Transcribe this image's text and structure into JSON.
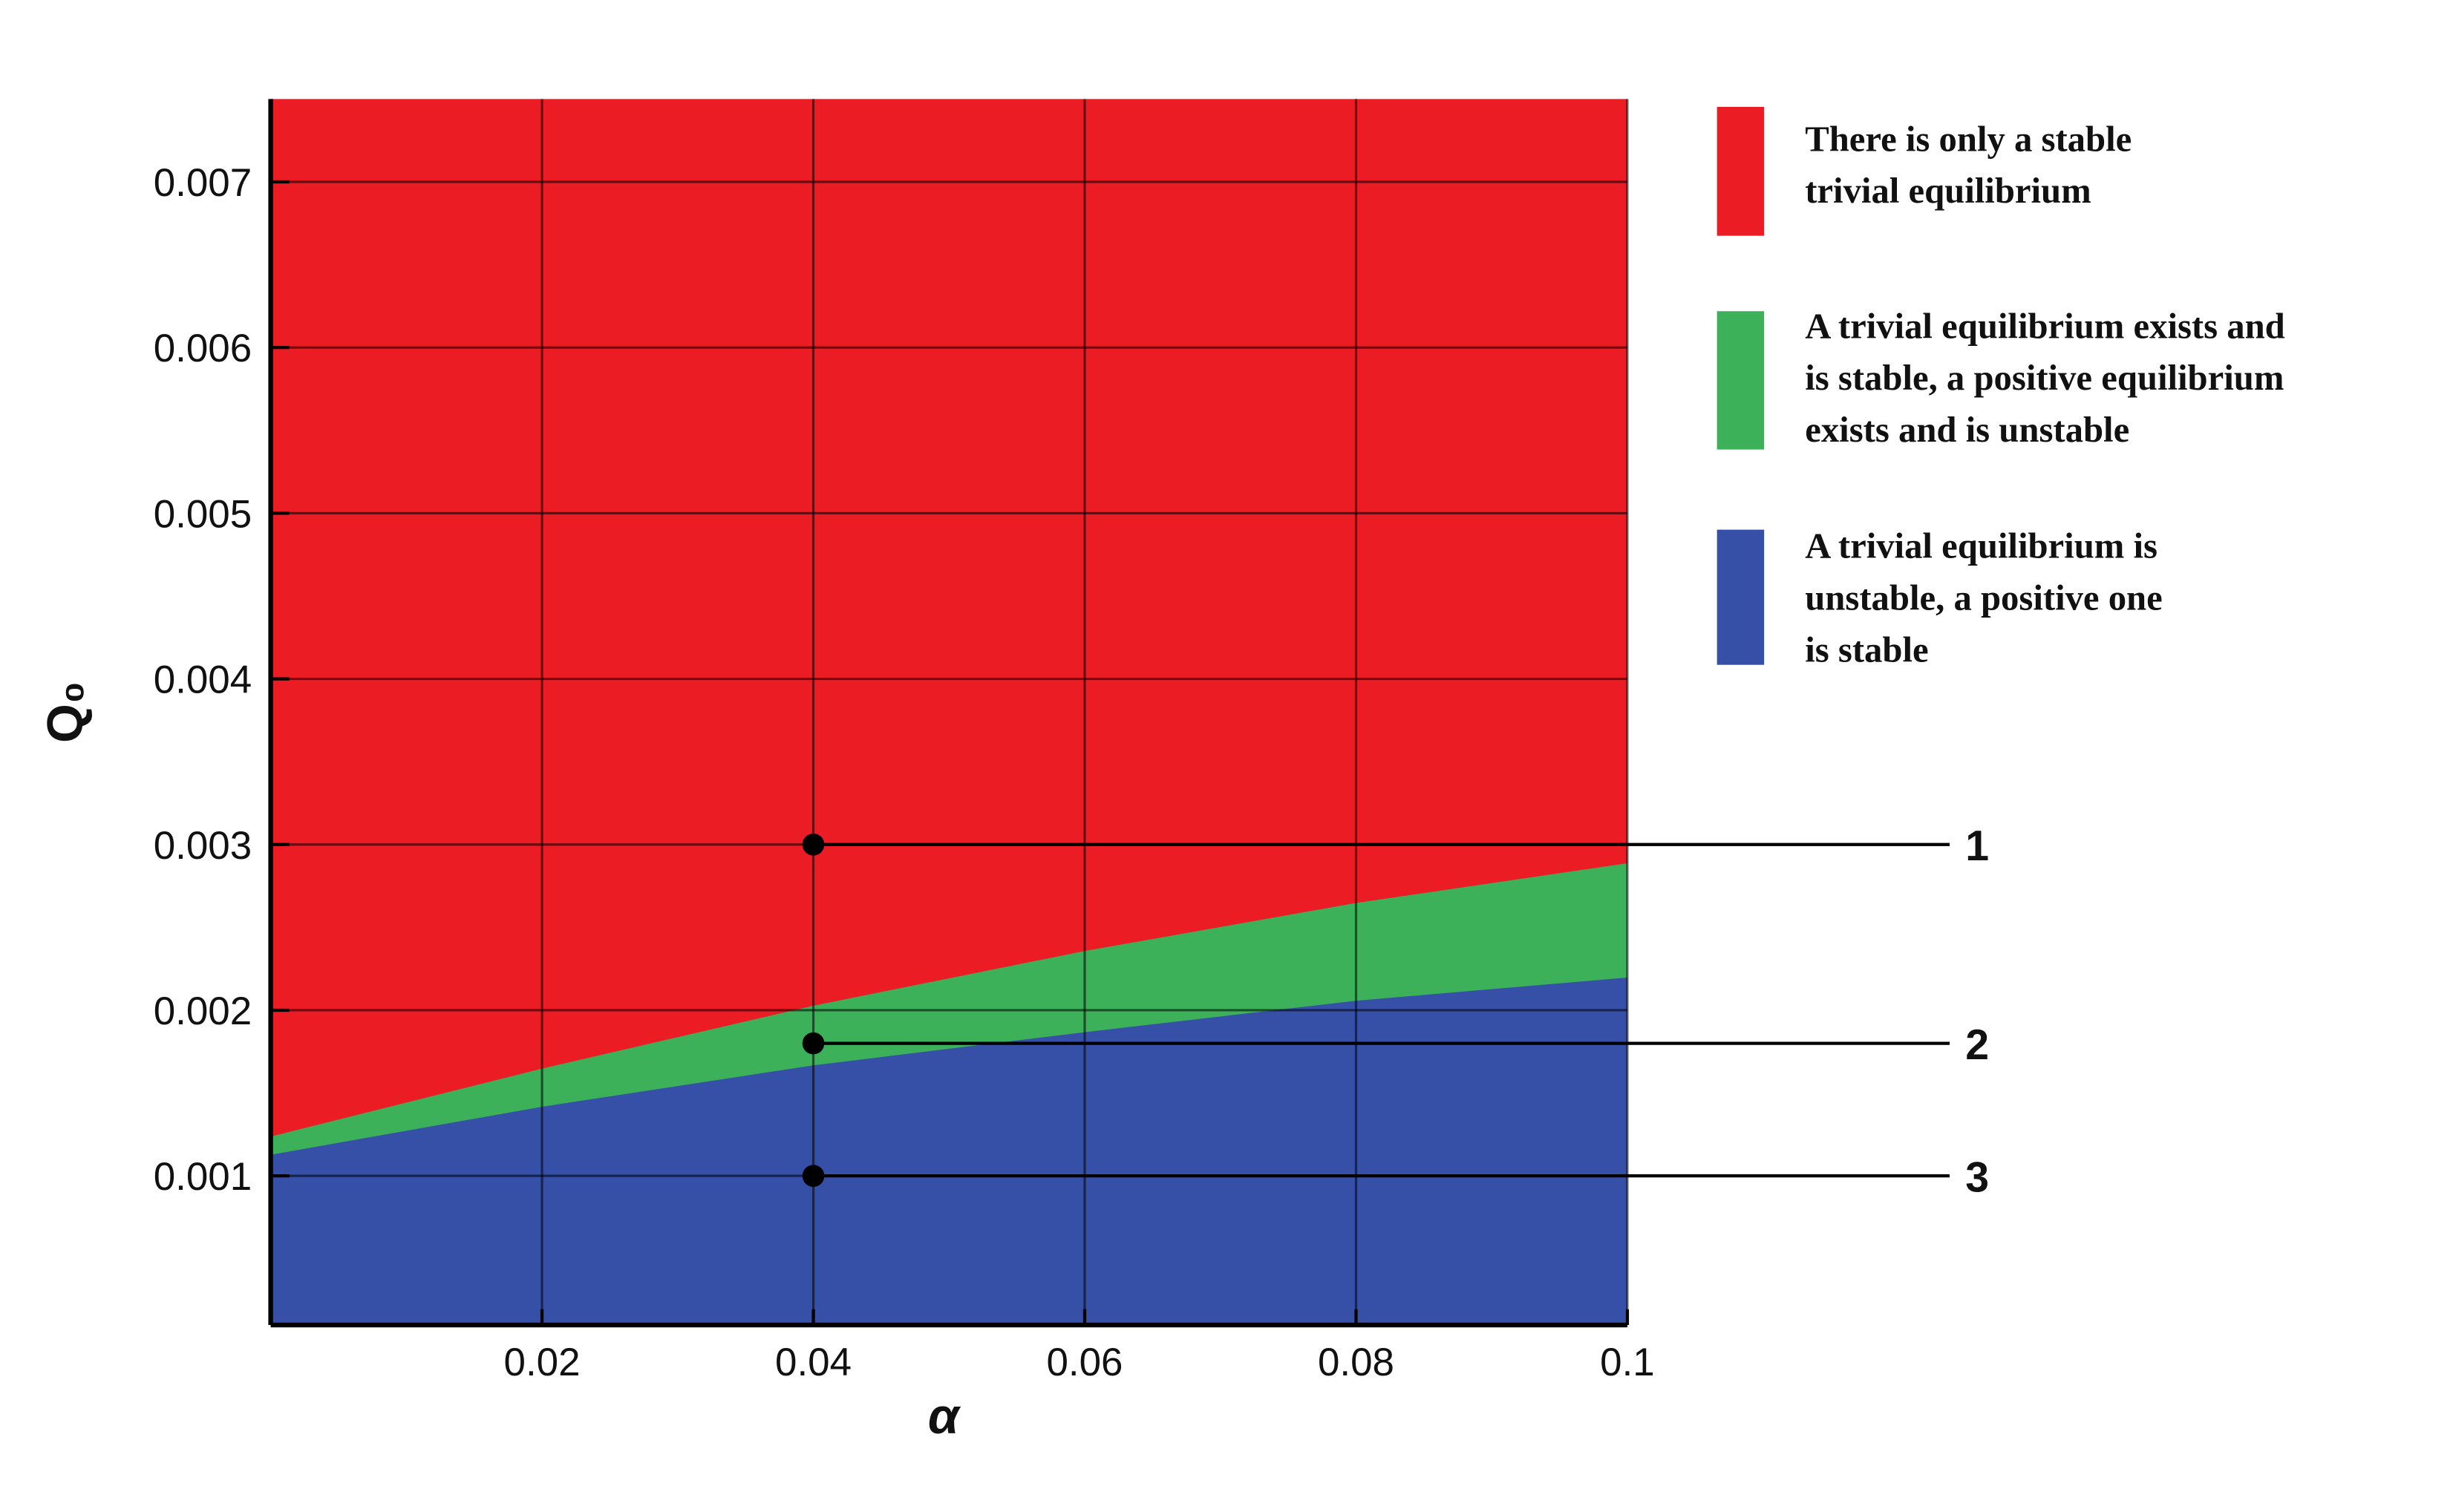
{
  "chart_data": {
    "type": "region",
    "xlabel": "α",
    "ylabel": "Q₀",
    "x": [
      0,
      0.02,
      0.04,
      0.06,
      0.08,
      0.1
    ],
    "xlim": [
      0,
      0.1
    ],
    "ylim": [
      0.0001,
      0.0075
    ],
    "xticks": [
      0.02,
      0.04,
      0.06,
      0.08,
      0.1
    ],
    "yticks": [
      0.001,
      0.002,
      0.003,
      0.004,
      0.005,
      0.006,
      0.007
    ],
    "grid": true,
    "series": [
      {
        "name": [
          "There is only a stable",
          "trivial equilibrium"
        ],
        "color": "#ec1c24"
      },
      {
        "name": [
          "A trivial equilibrium exists and",
          "is stable, a positive equilibrium",
          "exists and is unstable"
        ],
        "color": "#3cb15a",
        "values": [
          0.00123,
          0.00164,
          0.00202,
          0.00235,
          0.00264,
          0.00288
        ]
      },
      {
        "name": [
          "A trivial equilibrium is",
          "unstable, a positive one",
          "is stable"
        ],
        "color": "#3650a8",
        "values": [
          0.00112,
          0.00141,
          0.00166,
          0.00186,
          0.00205,
          0.00219
        ]
      }
    ],
    "points": [
      {
        "x": 0.04,
        "y": 0.003,
        "label": "1"
      },
      {
        "x": 0.04,
        "y": 0.0018,
        "label": "2"
      },
      {
        "x": 0.04,
        "y": 0.001,
        "label": "3"
      }
    ]
  }
}
